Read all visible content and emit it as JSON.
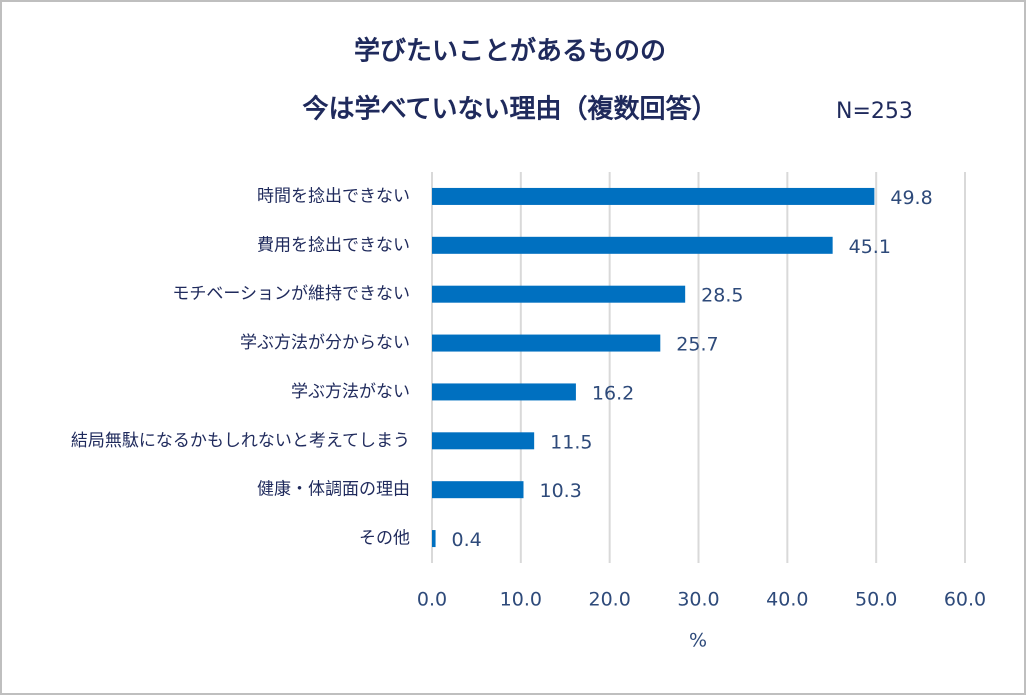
{
  "chart_data": {
    "type": "bar",
    "orientation": "horizontal",
    "title": [
      "学びたいことがあるものの",
      "今は学べていない理由（複数回答）"
    ],
    "note": "N=253",
    "categories": [
      "時間を捻出できない",
      "費用を捻出できない",
      "モチベーションが維持できない",
      "学ぶ方法が分からない",
      "学ぶ方法がない",
      "結局無駄になるかもしれないと考えてしまう",
      "健康・体調面の理由",
      "その他"
    ],
    "values": [
      49.8,
      45.1,
      28.5,
      25.7,
      16.2,
      11.5,
      10.3,
      0.4
    ],
    "color": "#0070c0",
    "xlabel": "%",
    "xlim": [
      0,
      60
    ],
    "xticks": [
      {
        "value": 0,
        "label": "0.0"
      },
      {
        "value": 10,
        "label": "10.0"
      },
      {
        "value": 20,
        "label": "20.0"
      },
      {
        "value": 30,
        "label": "30.0"
      },
      {
        "value": 40,
        "label": "40.0"
      },
      {
        "value": 50,
        "label": "50.0"
      },
      {
        "value": 60,
        "label": "60.0"
      }
    ],
    "grid": true
  }
}
